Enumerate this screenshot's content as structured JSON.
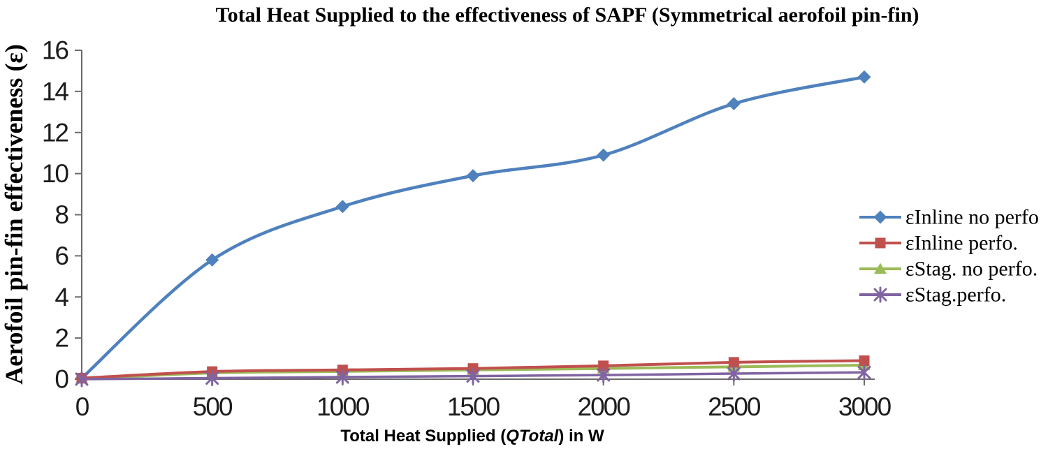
{
  "chart_data": {
    "type": "line",
    "title": "Total Heat Supplied to the effectiveness of SAPF (Symmetrical aerofoil pin-fin)",
    "ylabel": "Aerofoil pin-fin effectiveness (ε)",
    "xlabel": {
      "pre": "Total Heat Supplied (",
      "italic": "QTotal",
      "post": ") in W"
    },
    "x": [
      0,
      500,
      1000,
      1500,
      2000,
      2500,
      3000
    ],
    "x_tick_labels": [
      "0",
      "500",
      "1000",
      "1500",
      "2000",
      "2500",
      "3000"
    ],
    "y_ticks": [
      0,
      2,
      4,
      6,
      8,
      10,
      12,
      14,
      16
    ],
    "xlim": [
      0,
      3000
    ],
    "ylim": [
      0,
      16
    ],
    "grid": false,
    "legend_position": "right",
    "series": [
      {
        "name": "εInline no perfo",
        "marker": "diamond",
        "color": "#4F81BD",
        "line_width": 4.5,
        "values": [
          0.05,
          5.8,
          8.4,
          9.9,
          10.9,
          13.4,
          14.7
        ]
      },
      {
        "name": "εStag. no perfo.",
        "marker": "triangle",
        "color": "#9BBB59",
        "line_width": 4,
        "values": [
          0.02,
          0.3,
          0.38,
          0.45,
          0.52,
          0.6,
          0.68
        ]
      },
      {
        "name": "εInline perfo.",
        "marker": "square",
        "color": "#C0504D",
        "line_width": 4,
        "values": [
          0.05,
          0.37,
          0.45,
          0.52,
          0.65,
          0.82,
          0.9
        ]
      },
      {
        "name": "εStag.perfo.",
        "marker": "x-asterisk",
        "color": "#8064A2",
        "line_width": 3.5,
        "values": [
          0.0,
          0.05,
          0.1,
          0.15,
          0.2,
          0.27,
          0.33
        ]
      }
    ]
  },
  "legend": {
    "items": [
      {
        "label": "εInline no perfo",
        "marker": "diamond",
        "color": "#4F81BD"
      },
      {
        "label": "εInline perfo.",
        "marker": "square",
        "color": "#C0504D"
      },
      {
        "label": "εStag. no perfo.",
        "marker": "triangle",
        "color": "#9BBB59"
      },
      {
        "label": "εStag.perfo.",
        "marker": "x-asterisk",
        "color": "#8064A2"
      }
    ]
  },
  "colors": {
    "axis": "#6b6b6b",
    "text": "#1c1c1c"
  }
}
